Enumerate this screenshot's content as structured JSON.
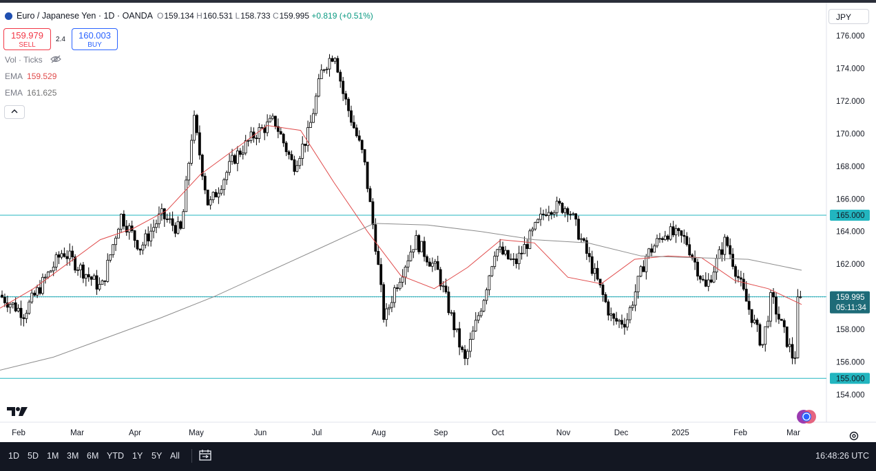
{
  "header": {
    "symbol_title": "Euro / Japanese Yen · 1D · OANDA",
    "ohlc": {
      "open_label": "O",
      "open": "159.134",
      "high_label": "H",
      "high": "160.531",
      "low_label": "L",
      "low": "158.733",
      "close_label": "C",
      "close": "159.995",
      "change": "+0.819 (+0.51%)"
    },
    "change_color": "#089981"
  },
  "trade": {
    "sell_price": "159.979",
    "sell_label": "SELL",
    "buy_price": "160.003",
    "buy_label": "BUY",
    "spread": "2.4"
  },
  "indicators": {
    "vol_label": "Vol · Ticks",
    "ema1_label": "EMA",
    "ema1_value": "159.529",
    "ema1_color": "#e04a4a",
    "ema2_label": "EMA",
    "ema2_value": "161.625",
    "ema2_color": "#808080"
  },
  "currency_selector": "JPY",
  "price_axis": {
    "ticks": [
      "176.000",
      "174.000",
      "172.000",
      "170.000",
      "168.000",
      "166.000",
      "164.000",
      "162.000",
      "160.000",
      "158.000",
      "156.000",
      "154.000"
    ],
    "level_labels": [
      "165.000",
      "160.000",
      "155.000"
    ],
    "current_price": "159.995",
    "countdown": "05:11:34"
  },
  "time_axis": [
    "Feb",
    "Mar",
    "Apr",
    "May",
    "Jun",
    "Jul",
    "Aug",
    "Sep",
    "Oct",
    "Nov",
    "Dec",
    "2025",
    "Feb",
    "Mar"
  ],
  "timeframes": [
    "1D",
    "5D",
    "1M",
    "3M",
    "6M",
    "YTD",
    "1Y",
    "5Y",
    "All"
  ],
  "clock": "16:48:26 UTC",
  "colors": {
    "up_candle": "#ffffff",
    "down_candle": "#000000",
    "ema_fast": "#e04a4a",
    "ema_slow": "#8c8c8c",
    "level_line": "#22b5bf",
    "price_line": "#1f8a9a"
  },
  "chart_data": {
    "type": "candlestick",
    "symbol": "EUR/JPY",
    "ylim": [
      153.5,
      177.5
    ],
    "levels": [
      165,
      160,
      155
    ],
    "last_price": 159.995,
    "anchors": [
      [
        "Jan 25",
        160.2
      ],
      [
        "Feb 5",
        159.0
      ],
      [
        "Feb 25",
        162.8
      ],
      [
        "Mar 15",
        160.5
      ],
      [
        "Mar 25",
        165.0
      ],
      [
        "Apr 5",
        163.0
      ],
      [
        "Apr 15",
        165.0
      ],
      [
        "Apr 25",
        164.0
      ],
      [
        "May 1",
        171.0
      ],
      [
        "May 8",
        165.5
      ],
      [
        "May 20",
        168.5
      ],
      [
        "May 30",
        170.0
      ],
      [
        "Jun 10",
        170.8
      ],
      [
        "Jun 20",
        168.0
      ],
      [
        "Jun 28",
        170.0
      ],
      [
        "Jul 5",
        174.0
      ],
      [
        "Jul 11",
        175.0
      ],
      [
        "Jul 15",
        172.5
      ],
      [
        "Jul 25",
        168.5
      ],
      [
        "Aug 1",
        163.0
      ],
      [
        "Aug 5",
        158.5
      ],
      [
        "Aug 10",
        160.5
      ],
      [
        "Aug 20",
        163.5
      ],
      [
        "Sep 1",
        161.5
      ],
      [
        "Sep 15",
        156.0
      ],
      [
        "Sep 25",
        160.0
      ],
      [
        "Oct 1",
        163.0
      ],
      [
        "Oct 10",
        162.0
      ],
      [
        "Oct 25",
        165.5
      ],
      [
        "Nov 5",
        165.5
      ],
      [
        "Nov 15",
        162.5
      ],
      [
        "Nov 28",
        158.5
      ],
      [
        "Dec 5",
        158.5
      ],
      [
        "Dec 15",
        162.5
      ],
      [
        "Dec 25",
        164.0
      ],
      [
        "Jan 5",
        163.5
      ],
      [
        "Jan 15",
        160.5
      ],
      [
        "Jan 25",
        163.5
      ],
      [
        "Feb 5",
        160.0
      ],
      [
        "Feb 15",
        157.0
      ],
      [
        "Feb 20",
        160.0
      ],
      [
        "Mar 3",
        156.0
      ],
      [
        "Mar 6",
        159.995
      ]
    ],
    "ema_fast": [
      159.3,
      160.5,
      162.0,
      163.5,
      164.2,
      165.3,
      167.5,
      169.0,
      170.5,
      170.2,
      167.0,
      164.0,
      161.3,
      160.5,
      161.8,
      163.5,
      163.3,
      161.2,
      160.8,
      162.3,
      162.5,
      162.4,
      161.0,
      160.5,
      159.53
    ],
    "ema_slow": [
      155.5,
      156.3,
      157.5,
      158.7,
      160.0,
      161.5,
      163.0,
      164.5,
      164.4,
      164.0,
      163.5,
      163.3,
      162.5,
      162.4,
      162.3,
      161.63
    ]
  }
}
